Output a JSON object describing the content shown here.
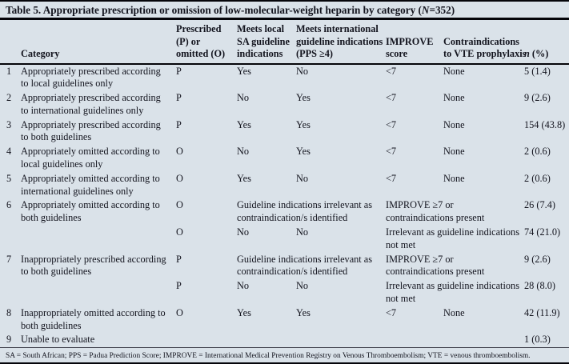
{
  "title": {
    "prefix": "Table 5. Appropriate prescription or omission of low-molecular-weight heparin by category (",
    "n": "N",
    "suffix": "=352)"
  },
  "columns": [
    {
      "key": "num",
      "label": ""
    },
    {
      "key": "category",
      "label": "Category"
    },
    {
      "key": "prescribed-or-omitted",
      "label": "Prescribed\n(P) or\nomitted (O)"
    },
    {
      "key": "meets-local-sa-guideline",
      "label": "Meets local\nSA guideline\nindications"
    },
    {
      "key": "meets-international-guideline",
      "label": "Meets international\nguideline indications\n(PPS ≥4)"
    },
    {
      "key": "improve-score",
      "label": "IMPROVE\nscore"
    },
    {
      "key": "contraindications-vte",
      "label": "Contraindications\nto VTE prophylaxis"
    },
    {
      "key": "n-percent",
      "italic": "n",
      "label": " (%)"
    }
  ],
  "rows": [
    {
      "num": "1",
      "category": "Appropriately prescribed according\nto local guidelines only",
      "cells": [
        {
          "c": "P"
        },
        {
          "c": "Yes"
        },
        {
          "c": "No"
        },
        {
          "c": "<7"
        },
        {
          "c": "None"
        }
      ],
      "n": "5 (1.4)"
    },
    {
      "num": "2",
      "category": "Appropriately prescribed according\nto international guidelines only",
      "cells": [
        {
          "c": "P"
        },
        {
          "c": "No"
        },
        {
          "c": "Yes"
        },
        {
          "c": "<7"
        },
        {
          "c": "None"
        }
      ],
      "n": "9 (2.6)"
    },
    {
      "num": "3",
      "category": "Appropriately prescribed according\nto both guidelines",
      "cells": [
        {
          "c": "P"
        },
        {
          "c": "Yes"
        },
        {
          "c": "Yes"
        },
        {
          "c": "<7"
        },
        {
          "c": "None"
        }
      ],
      "n": "154 (43.8)"
    },
    {
      "num": "4",
      "category": "Appropriately omitted according to\nlocal guidelines only",
      "cells": [
        {
          "c": "O"
        },
        {
          "c": "No"
        },
        {
          "c": "Yes"
        },
        {
          "c": "<7"
        },
        {
          "c": "None"
        }
      ],
      "n": "2 (0.6)"
    },
    {
      "num": "5",
      "category": "Appropriately omitted according to\ninternational guidelines only",
      "cells": [
        {
          "c": "O"
        },
        {
          "c": "Yes"
        },
        {
          "c": "No"
        },
        {
          "c": "<7"
        },
        {
          "c": "None"
        }
      ],
      "n": "2 (0.6)"
    },
    {
      "num": "6",
      "category": "Appropriately omitted according to\nboth guidelines",
      "cells": [
        {
          "c": "O"
        },
        {
          "c": "Guideline indications irrelevant as\ncontraindication/s identified",
          "span": 2
        },
        {
          "c": "IMPROVE ≥7 or\ncontraindications present",
          "span": 2
        }
      ],
      "n": "26 (7.4)"
    },
    {
      "num": "",
      "category": "",
      "cells": [
        {
          "c": "O"
        },
        {
          "c": "No"
        },
        {
          "c": "No"
        },
        {
          "c": "Irrelevant as guideline indications\nnot met",
          "span": 2
        }
      ],
      "n": "74 (21.0)"
    },
    {
      "num": "7",
      "category": "Inappropriately prescribed according\nto both guidelines",
      "cells": [
        {
          "c": "P"
        },
        {
          "c": "Guideline indications irrelevant as\ncontraindication/s identified",
          "span": 2
        },
        {
          "c": "IMPROVE ≥7 or\ncontraindications present",
          "span": 2
        }
      ],
      "n": "9 (2.6)"
    },
    {
      "num": "",
      "category": "",
      "cells": [
        {
          "c": "P"
        },
        {
          "c": "No"
        },
        {
          "c": "No"
        },
        {
          "c": "Irrelevant as guideline indications\nnot met",
          "span": 2
        }
      ],
      "n": "28 (8.0)"
    },
    {
      "num": "8",
      "category": "Inappropriately omitted according to\nboth guidelines",
      "cells": [
        {
          "c": "O"
        },
        {
          "c": "Yes"
        },
        {
          "c": "Yes"
        },
        {
          "c": "<7"
        },
        {
          "c": "None"
        }
      ],
      "n": "42 (11.9)"
    },
    {
      "num": "9",
      "category": "Unable to evaluate",
      "cells": [
        {
          "c": ""
        },
        {
          "c": ""
        },
        {
          "c": ""
        },
        {
          "c": ""
        },
        {
          "c": ""
        }
      ],
      "n": "1 (0.3)"
    }
  ],
  "footnote": "SA = South African; PPS = Padua Prediction Score; IMPROVE = International Medical Prevention Registry on Venous Thromboembolism; VTE = venous thromboembolism."
}
